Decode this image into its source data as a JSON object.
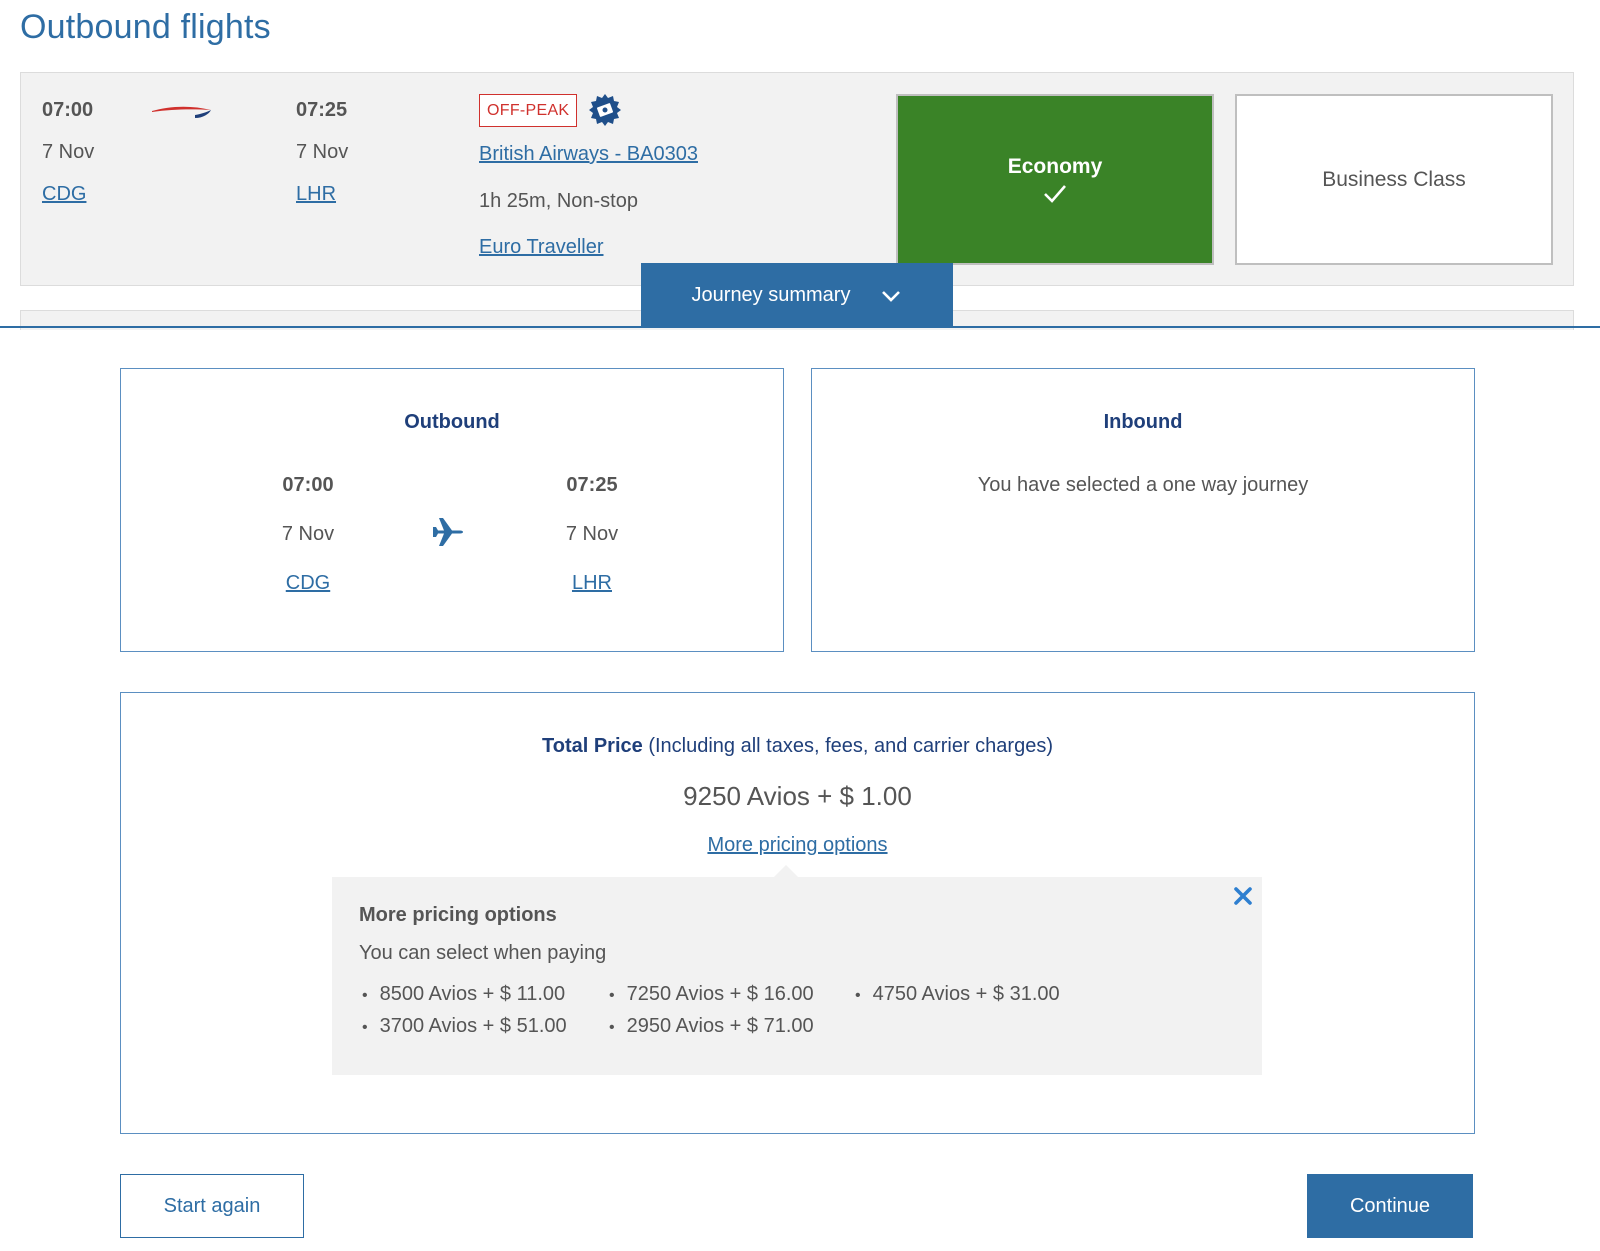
{
  "page": {
    "title": "Outbound flights"
  },
  "flight": {
    "departure_time": "07:00",
    "departure_date": "7 Nov",
    "departure_airport": "CDG",
    "arrival_time": "07:25",
    "arrival_date": "7 Nov",
    "arrival_airport": "LHR",
    "fare_tag": "OFF-PEAK",
    "flight_name": "British Airways - BA0303",
    "duration": "1h 25m, Non-stop",
    "cabin_product": "Euro Traveller",
    "airline_logo_icon": "ba-speedmarque-icon",
    "badge_icon": "avios-badge-icon"
  },
  "cabins": {
    "economy": {
      "label": "Economy",
      "selected": true,
      "color": "#3a8327"
    },
    "business": {
      "label": "Business Class",
      "selected": false
    }
  },
  "journey_tab": {
    "label": "Journey summary"
  },
  "outbound": {
    "title": "Outbound",
    "departure_time": "07:00",
    "departure_date": "7 Nov",
    "departure_airport": "CDG",
    "arrival_time": "07:25",
    "arrival_date": "7 Nov",
    "arrival_airport": "LHR"
  },
  "inbound": {
    "title": "Inbound",
    "message": "You have selected a one way journey"
  },
  "total_price": {
    "label": "Total Price",
    "note": " (Including all taxes, fees, and carrier charges)",
    "value": "9250 Avios + $ 1.00",
    "more_link": "More pricing options"
  },
  "pricing_popup": {
    "title": "More pricing options",
    "subtitle": "You can select when paying",
    "options": [
      "8500 Avios + $ 11.00",
      "7250 Avios + $ 16.00",
      "4750 Avios + $ 31.00",
      "3700 Avios + $ 51.00",
      "2950 Avios + $ 71.00"
    ]
  },
  "buttons": {
    "start_again": "Start again",
    "continue": "Continue"
  },
  "colors": {
    "brand_blue": "#2e6da4",
    "heading_navy": "#1f3f7a",
    "offpeak_red": "#d0312d"
  }
}
